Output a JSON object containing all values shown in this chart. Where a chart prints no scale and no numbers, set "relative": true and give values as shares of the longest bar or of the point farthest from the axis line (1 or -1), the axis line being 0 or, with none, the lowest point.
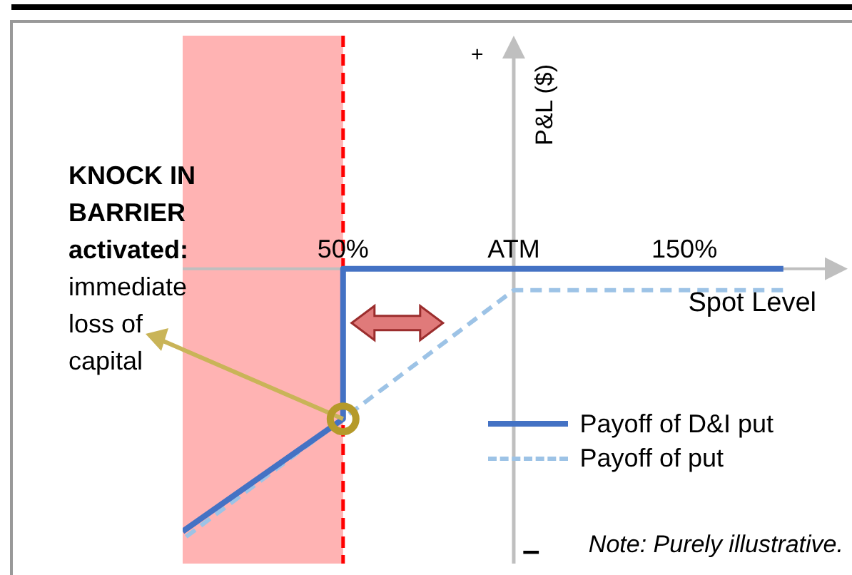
{
  "chart_data": {
    "type": "line",
    "xlabel": "Spot Level",
    "ylabel": "P&L ($)",
    "relative": true,
    "xlim": [
      3,
      192
    ],
    "xticks": [
      {
        "value": 50,
        "label": "50%"
      },
      {
        "value": 100,
        "label": "ATM"
      },
      {
        "value": 150,
        "label": "150%"
      }
    ],
    "series": [
      {
        "name": "Payoff of D&I put",
        "color": "#4472c4",
        "line_style": "solid",
        "x": [
          3,
          50,
          50,
          179
        ],
        "values": [
          -0.98,
          -0.56,
          0,
          0
        ]
      },
      {
        "name": "Payoff of put",
        "color": "#9dc3e6",
        "line_style": "dashed",
        "x": [
          4,
          100,
          179
        ],
        "values": [
          -1,
          -0.08,
          -0.08
        ]
      }
    ],
    "ref_lines": [
      {
        "axis": "x",
        "value": 50,
        "color": "#ff0000",
        "line_style": "dashed"
      },
      {
        "axis": "x",
        "value": 100,
        "color": "#bfbfbf",
        "line_style": "solid"
      }
    ],
    "bands": [
      {
        "axis": "x",
        "from": 3,
        "to": 50,
        "color": "#ffb3b3"
      }
    ],
    "legend": "bottom right",
    "marker": "none",
    "grid": false,
    "annotations": [
      "+",
      "–",
      "KNOCK IN BARRIER activated:",
      "immediate loss of capital",
      "Note: Purely illustrative."
    ]
  }
}
